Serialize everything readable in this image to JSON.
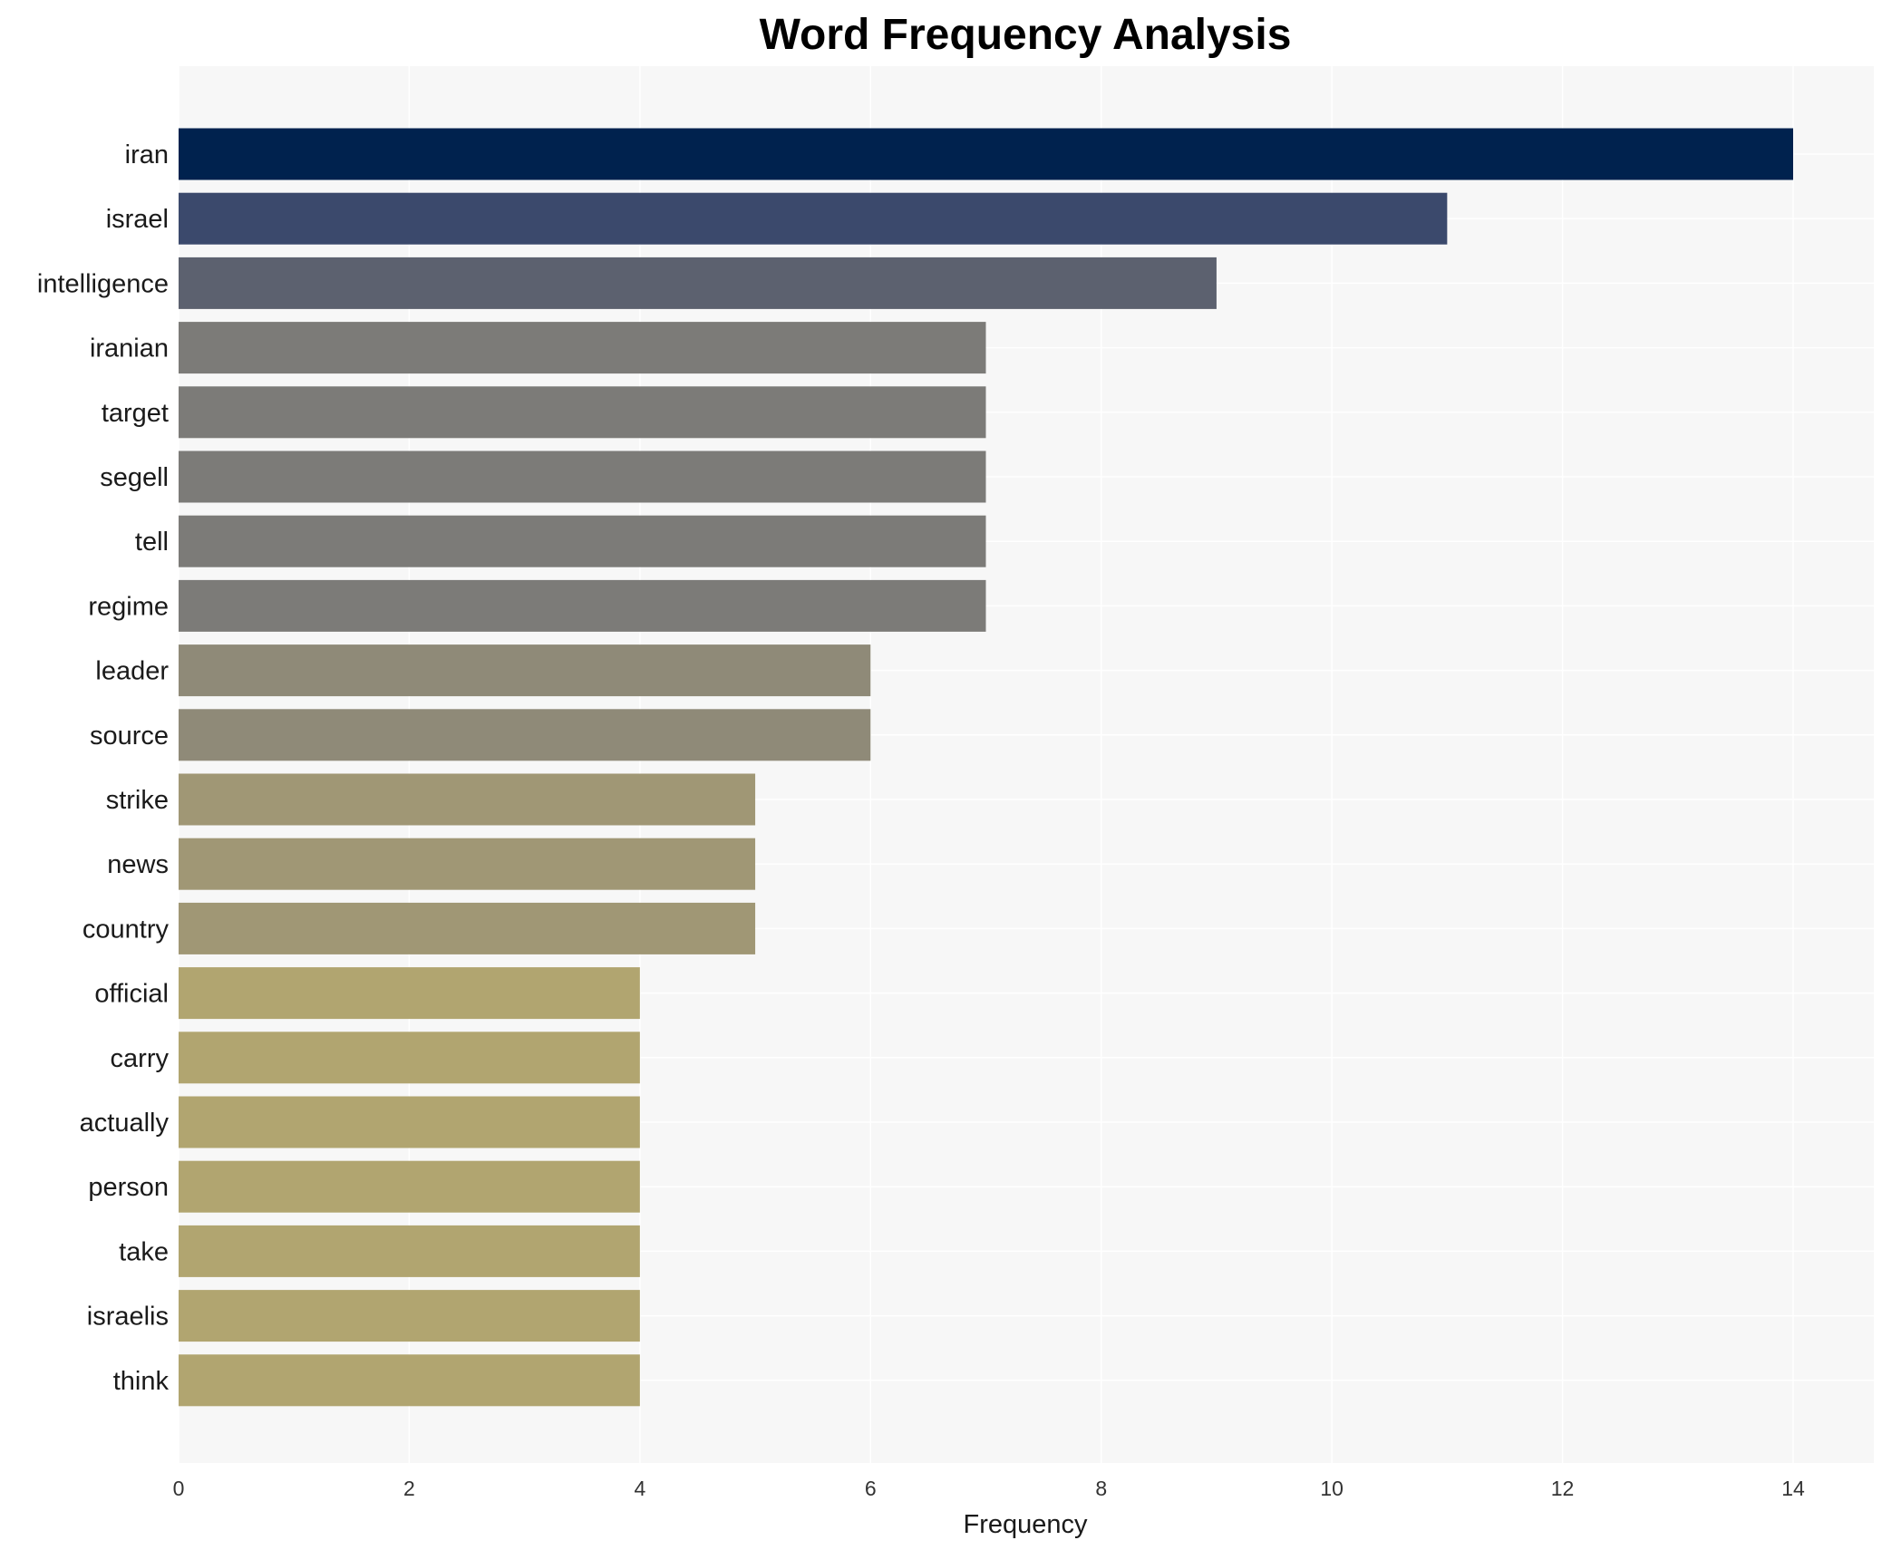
{
  "chart_data": {
    "type": "bar",
    "orientation": "horizontal",
    "title": "Word Frequency Analysis",
    "xlabel": "Frequency",
    "ylabel": "",
    "xlim": [
      0,
      14.7
    ],
    "xticks": [
      0,
      2,
      4,
      6,
      8,
      10,
      12,
      14
    ],
    "grid": true,
    "categories": [
      "iran",
      "israel",
      "intelligence",
      "iranian",
      "target",
      "segell",
      "tell",
      "regime",
      "leader",
      "source",
      "strike",
      "news",
      "country",
      "official",
      "carry",
      "actually",
      "person",
      "take",
      "israelis",
      "think"
    ],
    "values": [
      14,
      11,
      9,
      7,
      7,
      7,
      7,
      7,
      6,
      6,
      5,
      5,
      5,
      4,
      4,
      4,
      4,
      4,
      4,
      4
    ],
    "colors": [
      "#00224e",
      "#3b496c",
      "#5c616f",
      "#7c7b78",
      "#7c7b78",
      "#7c7b78",
      "#7c7b78",
      "#7c7b78",
      "#8f8a78",
      "#8f8a78",
      "#a09775",
      "#a09775",
      "#a09775",
      "#b1a570",
      "#b1a570",
      "#b1a570",
      "#b1a570",
      "#b1a570",
      "#b1a570",
      "#b1a570"
    ]
  }
}
